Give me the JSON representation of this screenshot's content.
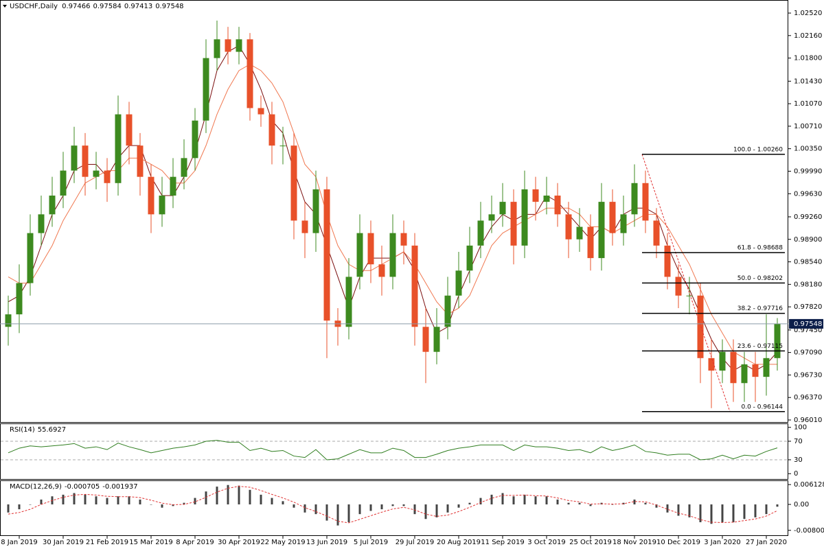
{
  "chart_data": [
    {
      "type": "candlestick",
      "title": "USDCHF,Daily",
      "header_values": [
        0.97466,
        0.97584,
        0.97413,
        0.97548
      ],
      "categories": [
        null,
        "8 Jan 2019",
        null,
        null,
        null,
        "30 Jan 2019",
        null,
        null,
        null,
        "21 Feb 2019",
        null,
        null,
        null,
        "15 Mar 2019",
        null,
        null,
        null,
        "8 Apr 2019",
        null,
        null,
        null,
        "30 Apr 2019",
        null,
        null,
        null,
        "22 May 2019",
        null,
        null,
        null,
        "13 Jun 2019",
        null,
        null,
        null,
        "5 Jul 2019",
        null,
        null,
        null,
        "29 Jul 2019",
        null,
        null,
        null,
        "20 Aug 2019",
        null,
        null,
        null,
        "11 Sep 2019",
        null,
        null,
        null,
        "3 Oct 2019",
        null,
        null,
        null,
        "25 Oct 2019",
        null,
        null,
        null,
        "18 Nov 2019",
        null,
        null,
        null,
        "10 Dec 2019",
        null,
        null,
        null,
        "3 Jan 2020",
        null,
        null,
        null,
        "27 Jan 2020",
        null
      ],
      "open": [
        0.975,
        0.977,
        0.982,
        0.99,
        0.993,
        0.996,
        1.0,
        1.004,
        0.999,
        1.0,
        0.998,
        1.009,
        1.004,
        0.999,
        0.993,
        0.996,
        0.999,
        1.002,
        1.008,
        1.018,
        1.021,
        1.019,
        1.021,
        1.01,
        1.009,
        1.004,
        1.004,
        0.992,
        0.99,
        0.997,
        0.976,
        0.975,
        0.983,
        0.99,
        0.985,
        0.983,
        0.99,
        0.988,
        0.975,
        0.971,
        0.975,
        0.98,
        0.984,
        0.988,
        0.992,
        0.993,
        0.995,
        0.988,
        0.997,
        0.995,
        0.996,
        0.993,
        0.989,
        0.991,
        0.986,
        0.995,
        0.99,
        0.993,
        0.998,
        0.992,
        0.988,
        0.983,
        0.98,
        0.98,
        0.97,
        0.968,
        0.971,
        0.966,
        0.969,
        0.967,
        0.97
      ],
      "high": [
        0.98,
        0.985,
        0.993,
        0.996,
        0.999,
        1.003,
        1.007,
        1.006,
        1.003,
        1.002,
        1.012,
        1.011,
        1.006,
        1.001,
        0.999,
        1.002,
        1.005,
        1.01,
        1.021,
        1.024,
        1.023,
        1.023,
        1.022,
        1.012,
        1.011,
        1.007,
        1.006,
        0.995,
        1.0,
        0.999,
        0.978,
        0.986,
        0.993,
        0.992,
        0.988,
        0.993,
        0.992,
        0.99,
        0.978,
        0.978,
        0.983,
        0.987,
        0.991,
        0.995,
        0.996,
        0.998,
        0.997,
        1.0,
        0.999,
        0.999,
        0.998,
        0.995,
        0.994,
        0.993,
        0.998,
        0.997,
        0.996,
        1.001,
        1.0,
        0.994,
        0.99,
        0.985,
        0.983,
        0.982,
        0.973,
        0.973,
        0.973,
        0.971,
        0.971,
        0.977,
        0.9764
      ],
      "low": [
        0.972,
        0.974,
        0.98,
        0.988,
        0.991,
        0.994,
        0.998,
        0.996,
        0.997,
        0.995,
        0.996,
        1.001,
        0.996,
        0.99,
        0.991,
        0.994,
        0.997,
        1.0,
        1.006,
        1.016,
        1.017,
        1.017,
        1.008,
        1.007,
        1.001,
        1.001,
        0.989,
        0.986,
        0.987,
        0.97,
        0.972,
        0.973,
        0.981,
        0.982,
        0.98,
        0.981,
        0.985,
        0.972,
        0.966,
        0.969,
        0.973,
        0.978,
        0.982,
        0.986,
        0.99,
        0.991,
        0.985,
        0.986,
        0.992,
        0.993,
        0.991,
        0.986,
        0.987,
        0.984,
        0.984,
        0.988,
        0.988,
        0.991,
        0.99,
        0.986,
        0.981,
        0.978,
        0.977,
        0.966,
        0.962,
        0.966,
        0.963,
        0.963,
        0.963,
        0.964,
        0.968
      ],
      "close": [
        0.977,
        0.982,
        0.99,
        0.993,
        0.996,
        1.0,
        1.004,
        0.999,
        1.0,
        0.998,
        1.009,
        1.004,
        0.999,
        0.993,
        0.996,
        0.999,
        1.002,
        1.008,
        1.018,
        1.021,
        1.019,
        1.021,
        1.01,
        1.009,
        1.004,
        1.004,
        0.992,
        0.99,
        0.997,
        0.976,
        0.975,
        0.983,
        0.99,
        0.985,
        0.983,
        0.99,
        0.988,
        0.975,
        0.971,
        0.975,
        0.98,
        0.984,
        0.988,
        0.992,
        0.993,
        0.995,
        0.988,
        0.997,
        0.995,
        0.996,
        0.993,
        0.989,
        0.991,
        0.986,
        0.995,
        0.99,
        0.993,
        0.998,
        0.992,
        0.988,
        0.983,
        0.98,
        0.98,
        0.97,
        0.968,
        0.971,
        0.966,
        0.969,
        0.967,
        0.97,
        0.97548
      ],
      "up_color": "#3d8a1f",
      "down_color": "#e8512a",
      "overlays": [
        {
          "color": "#7a0d0d",
          "values": [
            0.979,
            0.98,
            0.983,
            0.988,
            0.993,
            0.996,
            1.0,
            1.001,
            1.001,
            0.999,
            1.002,
            1.004,
            1.004,
            0.999,
            0.996,
            0.996,
            0.999,
            1.003,
            1.009,
            1.016,
            1.019,
            1.02,
            1.017,
            1.013,
            1.008,
            1.006,
            1.0,
            0.995,
            0.993,
            0.988,
            0.983,
            0.978,
            0.983,
            0.986,
            0.986,
            0.986,
            0.987,
            0.984,
            0.978,
            0.974,
            0.975,
            0.98,
            0.984,
            0.988,
            0.991,
            0.993,
            0.992,
            0.993,
            0.993,
            0.996,
            0.995,
            0.993,
            0.991,
            0.989,
            0.991,
            0.99,
            0.993,
            0.994,
            0.994,
            0.993,
            0.988,
            0.984,
            0.981,
            0.977,
            0.973,
            0.97,
            0.968,
            0.969,
            0.968,
            0.969,
            0.971
          ]
        },
        {
          "color": "#f07850",
          "values": [
            0.983,
            0.982,
            0.982,
            0.985,
            0.988,
            0.992,
            0.995,
            0.998,
            0.999,
            1.0,
            1.0,
            1.002,
            1.002,
            1.001,
            1.0,
            0.998,
            0.998,
            1.0,
            1.004,
            1.009,
            1.013,
            1.016,
            1.017,
            1.016,
            1.014,
            1.011,
            1.006,
            1.001,
            0.999,
            0.993,
            0.988,
            0.985,
            0.984,
            0.984,
            0.985,
            0.986,
            0.987,
            0.985,
            0.982,
            0.979,
            0.977,
            0.978,
            0.98,
            0.984,
            0.988,
            0.99,
            0.991,
            0.992,
            0.993,
            0.994,
            0.994,
            0.994,
            0.993,
            0.991,
            0.991,
            0.99,
            0.991,
            0.992,
            0.993,
            0.993,
            0.991,
            0.988,
            0.985,
            0.981,
            0.977,
            0.974,
            0.971,
            0.97,
            0.969,
            0.969,
            0.969
          ]
        }
      ],
      "last_price": 0.97548,
      "ylim": [
        0.95977,
        1.02729
      ],
      "yticks": [
        {
          "value": 1.0252,
          "label": "1.02520"
        },
        {
          "value": 1.0216,
          "label": "1.02160"
        },
        {
          "value": 1.018,
          "label": "1.01800"
        },
        {
          "value": 1.0143,
          "label": "1.01430"
        },
        {
          "value": 1.0107,
          "label": "1.01070"
        },
        {
          "value": 1.0071,
          "label": "1.00710"
        },
        {
          "value": 1.0035,
          "label": "1.00350"
        },
        {
          "value": 0.9999,
          "label": "0.99990"
        },
        {
          "value": 0.9963,
          "label": "0.99630"
        },
        {
          "value": 0.9926,
          "label": "0.99260"
        },
        {
          "value": 0.989,
          "label": "0.98900"
        },
        {
          "value": 0.9854,
          "label": "0.98540"
        },
        {
          "value": 0.9818,
          "label": "0.98180"
        },
        {
          "value": 0.9782,
          "label": "0.97820"
        },
        {
          "value": 0.9745,
          "label": "0.97450"
        },
        {
          "value": 0.9709,
          "label": "0.97090"
        },
        {
          "value": 0.9673,
          "label": "0.96730"
        },
        {
          "value": 0.9637,
          "label": "0.96370"
        },
        {
          "value": 0.9601,
          "label": "0.96010"
        }
      ],
      "fib_levels": [
        {
          "value": 1.0026,
          "label": "100.0 - 1.00260"
        },
        {
          "value": 0.98688,
          "label": "61.8 - 0.98688"
        },
        {
          "value": 0.98202,
          "label": "50.0 - 0.98202"
        },
        {
          "value": 0.97716,
          "label": "38.2 - 0.97716"
        },
        {
          "value": 0.97115,
          "label": "23.6 - 0.97115"
        },
        {
          "value": 0.96144,
          "label": "0.0 - 0.96144"
        }
      ]
    },
    {
      "type": "line",
      "title": "RSI(14)",
      "header_values": [
        55.6927
      ],
      "values": [
        45,
        55,
        60,
        58,
        60,
        62,
        65,
        55,
        58,
        52,
        66,
        58,
        52,
        45,
        50,
        55,
        58,
        62,
        70,
        72,
        68,
        68,
        50,
        55,
        48,
        50,
        38,
        35,
        52,
        30,
        32,
        42,
        52,
        45,
        45,
        55,
        50,
        35,
        35,
        42,
        50,
        55,
        58,
        62,
        62,
        62,
        50,
        62,
        58,
        58,
        55,
        50,
        52,
        45,
        58,
        50,
        55,
        62,
        48,
        45,
        40,
        42,
        42,
        30,
        32,
        40,
        32,
        40,
        38,
        48,
        55.6927
      ],
      "color": "#2e7d1e",
      "levels": [
        70,
        30
      ],
      "ylim": [
        -13,
        107
      ],
      "yticks": [
        100,
        70,
        30,
        0
      ]
    },
    {
      "type": "macd",
      "title": "MACD(12,26,9)",
      "header_values": [
        -0.000705,
        -0.001937
      ],
      "histogram": [
        -0.0025,
        -0.0015,
        0.0,
        0.0015,
        0.0025,
        0.003,
        0.0035,
        0.003,
        0.0025,
        0.002,
        0.0025,
        0.0025,
        0.0015,
        0.0,
        -0.001,
        -0.0005,
        0.0005,
        0.002,
        0.004,
        0.0055,
        0.006,
        0.0058,
        0.0045,
        0.003,
        0.002,
        0.001,
        -0.001,
        -0.0025,
        -0.003,
        -0.005,
        -0.0065,
        -0.0055,
        -0.003,
        -0.002,
        -0.0015,
        -0.0005,
        -0.0005,
        -0.003,
        -0.0045,
        -0.004,
        -0.0025,
        -0.001,
        0.0005,
        0.002,
        0.003,
        0.0035,
        0.0025,
        0.003,
        0.0025,
        0.0025,
        0.0015,
        0.0005,
        0.0005,
        -0.0005,
        0.0005,
        0.0,
        0.0005,
        0.0015,
        0.0005,
        -0.001,
        -0.0025,
        -0.0035,
        -0.004,
        -0.0055,
        -0.006,
        -0.0055,
        -0.0055,
        -0.0045,
        -0.004,
        -0.003,
        -0.000705
      ],
      "signal": [
        -0.003,
        -0.0025,
        -0.0015,
        0.0,
        0.0012,
        0.0022,
        0.0029,
        0.0031,
        0.0029,
        0.0025,
        0.0024,
        0.0024,
        0.0021,
        0.0013,
        0.0004,
        -0.0001,
        0.0,
        0.0008,
        0.0022,
        0.0038,
        0.005,
        0.0056,
        0.0053,
        0.0043,
        0.0031,
        0.002,
        0.0007,
        -0.001,
        -0.0022,
        -0.0036,
        -0.0052,
        -0.0057,
        -0.0046,
        -0.0035,
        -0.0024,
        -0.0014,
        -0.0009,
        -0.0017,
        -0.003,
        -0.0037,
        -0.0033,
        -0.0022,
        -0.0009,
        0.0006,
        0.0019,
        0.0028,
        0.0028,
        0.0029,
        0.0027,
        0.0026,
        0.002,
        0.0012,
        0.0008,
        0.0001,
        0.0002,
        0.0001,
        0.0002,
        0.0009,
        0.0008,
        -0.0002,
        -0.0015,
        -0.0027,
        -0.0035,
        -0.0047,
        -0.0055,
        -0.0056,
        -0.0055,
        -0.005,
        -0.0045,
        -0.0036,
        -0.001937
      ],
      "hist_color": "#444444",
      "signal_color": "#e03030",
      "ylim": [
        -0.009749,
        0.007216
      ],
      "yticks": [
        0.006128,
        {
          "value": 0,
          "label": "0.00"
        },
        -0.008009
      ]
    }
  ]
}
